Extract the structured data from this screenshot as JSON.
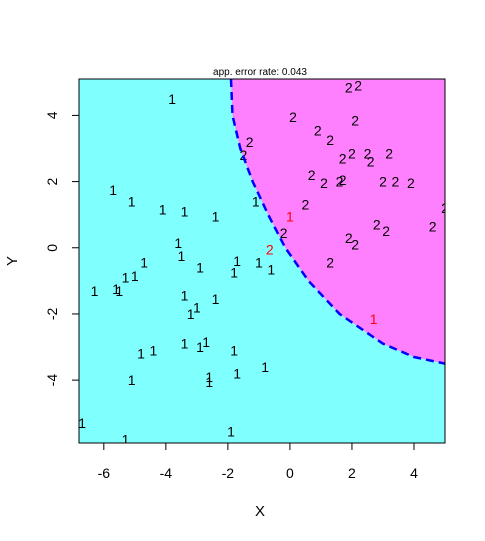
{
  "chart_data": {
    "type": "scatter",
    "title": "app. error rate: 0.043",
    "xlabel": "X",
    "ylabel": "Y",
    "xlim": [
      -6.8,
      5.0
    ],
    "ylim": [
      -5.9,
      5.1
    ],
    "x_ticks": [
      -6,
      -4,
      -2,
      0,
      2,
      4
    ],
    "y_ticks": [
      -4,
      -2,
      0,
      2,
      4
    ],
    "x_tick_labels": [
      "-6",
      "-4",
      "-2",
      "0",
      "2",
      "4"
    ],
    "y_tick_labels": [
      "-4",
      "-2",
      "0",
      "2",
      "4"
    ],
    "grid": false,
    "regions": [
      {
        "label": "1",
        "color": "#80FFFF"
      },
      {
        "label": "2",
        "color": "#FF80FF"
      }
    ],
    "boundary": {
      "style": "dashed",
      "color": "#0000FF",
      "points": [
        [
          -1.9,
          5.1
        ],
        [
          -1.85,
          4.0
        ],
        [
          -1.6,
          3.0
        ],
        [
          -1.2,
          2.0
        ],
        [
          -0.7,
          1.0
        ],
        [
          -0.15,
          0.0
        ],
        [
          0.6,
          -1.0
        ],
        [
          1.6,
          -2.0
        ],
        [
          3.0,
          -2.9
        ],
        [
          4.0,
          -3.3
        ],
        [
          5.0,
          -3.5
        ]
      ]
    },
    "misclassified_color": "#FF0000",
    "points": [
      {
        "x": -3.8,
        "y": 4.5,
        "label": "1"
      },
      {
        "x": -5.7,
        "y": 1.75,
        "label": "1"
      },
      {
        "x": -5.1,
        "y": 1.4,
        "label": "1"
      },
      {
        "x": -4.1,
        "y": 1.15,
        "label": "1"
      },
      {
        "x": -3.4,
        "y": 1.1,
        "label": "1"
      },
      {
        "x": -2.4,
        "y": 0.95,
        "label": "1"
      },
      {
        "x": -1.1,
        "y": 1.4,
        "label": "1"
      },
      {
        "x": -3.6,
        "y": 0.15,
        "label": "1"
      },
      {
        "x": -3.5,
        "y": -0.25,
        "label": "1"
      },
      {
        "x": -4.7,
        "y": -0.45,
        "label": "1"
      },
      {
        "x": -1.7,
        "y": -0.4,
        "label": "1"
      },
      {
        "x": -1.0,
        "y": -0.45,
        "label": "1"
      },
      {
        "x": -0.6,
        "y": -0.65,
        "label": "1"
      },
      {
        "x": -1.8,
        "y": -0.75,
        "label": "1"
      },
      {
        "x": -2.9,
        "y": -0.6,
        "label": "1"
      },
      {
        "x": -5.0,
        "y": -0.85,
        "label": "1"
      },
      {
        "x": -5.3,
        "y": -0.9,
        "label": "1"
      },
      {
        "x": -6.3,
        "y": -1.3,
        "label": "1"
      },
      {
        "x": -5.6,
        "y": -1.25,
        "label": "1"
      },
      {
        "x": -5.5,
        "y": -1.3,
        "label": "1"
      },
      {
        "x": -3.4,
        "y": -1.45,
        "label": "1"
      },
      {
        "x": -3.0,
        "y": -1.8,
        "label": "1"
      },
      {
        "x": -3.2,
        "y": -2.0,
        "label": "1"
      },
      {
        "x": -2.4,
        "y": -1.55,
        "label": "1"
      },
      {
        "x": -3.4,
        "y": -2.9,
        "label": "1"
      },
      {
        "x": -2.7,
        "y": -2.85,
        "label": "1"
      },
      {
        "x": -2.9,
        "y": -3.0,
        "label": "1"
      },
      {
        "x": -4.4,
        "y": -3.1,
        "label": "1"
      },
      {
        "x": -4.8,
        "y": -3.2,
        "label": "1"
      },
      {
        "x": -1.8,
        "y": -3.1,
        "label": "1"
      },
      {
        "x": -0.8,
        "y": -3.6,
        "label": "1"
      },
      {
        "x": -1.7,
        "y": -3.8,
        "label": "1"
      },
      {
        "x": -2.6,
        "y": -3.9,
        "label": "1"
      },
      {
        "x": -2.6,
        "y": -4.05,
        "label": "1"
      },
      {
        "x": -5.1,
        "y": -4.0,
        "label": "1"
      },
      {
        "x": -6.7,
        "y": -5.3,
        "label": "1"
      },
      {
        "x": -5.3,
        "y": -5.8,
        "label": "1"
      },
      {
        "x": -1.9,
        "y": -5.55,
        "label": "1"
      },
      {
        "x": 1.9,
        "y": 4.85,
        "label": "2"
      },
      {
        "x": 2.2,
        "y": 4.9,
        "label": "2"
      },
      {
        "x": 0.1,
        "y": 3.95,
        "label": "2"
      },
      {
        "x": 2.1,
        "y": 3.85,
        "label": "2"
      },
      {
        "x": 0.9,
        "y": 3.55,
        "label": "2"
      },
      {
        "x": 1.3,
        "y": 3.25,
        "label": "2"
      },
      {
        "x": -1.3,
        "y": 3.2,
        "label": "2"
      },
      {
        "x": -1.5,
        "y": 2.8,
        "label": "2"
      },
      {
        "x": 2.0,
        "y": 2.85,
        "label": "2"
      },
      {
        "x": 2.5,
        "y": 2.85,
        "label": "2"
      },
      {
        "x": 3.2,
        "y": 2.85,
        "label": "2"
      },
      {
        "x": 1.7,
        "y": 2.7,
        "label": "2"
      },
      {
        "x": 2.6,
        "y": 2.6,
        "label": "2"
      },
      {
        "x": 0.7,
        "y": 2.2,
        "label": "2"
      },
      {
        "x": 1.1,
        "y": 1.95,
        "label": "2"
      },
      {
        "x": 1.6,
        "y": 2.0,
        "label": "2"
      },
      {
        "x": 1.7,
        "y": 2.05,
        "label": "2"
      },
      {
        "x": 3.0,
        "y": 2.0,
        "label": "2"
      },
      {
        "x": 3.4,
        "y": 2.0,
        "label": "2"
      },
      {
        "x": 3.9,
        "y": 1.95,
        "label": "2"
      },
      {
        "x": 0.5,
        "y": 1.3,
        "label": "2"
      },
      {
        "x": 5.0,
        "y": 1.2,
        "label": "2"
      },
      {
        "x": 2.8,
        "y": 0.7,
        "label": "2"
      },
      {
        "x": 3.1,
        "y": 0.5,
        "label": "2"
      },
      {
        "x": 4.6,
        "y": 0.65,
        "label": "2"
      },
      {
        "x": -0.2,
        "y": 0.45,
        "label": "2"
      },
      {
        "x": 1.9,
        "y": 0.3,
        "label": "2"
      },
      {
        "x": 2.1,
        "y": 0.1,
        "label": "2"
      },
      {
        "x": 1.3,
        "y": -0.45,
        "label": "2"
      },
      {
        "x": 0.0,
        "y": 0.95,
        "label": "1",
        "misclassified": true
      },
      {
        "x": -0.65,
        "y": -0.05,
        "label": "2",
        "misclassified": true
      },
      {
        "x": 2.7,
        "y": -2.15,
        "label": "1",
        "misclassified": true
      }
    ]
  }
}
